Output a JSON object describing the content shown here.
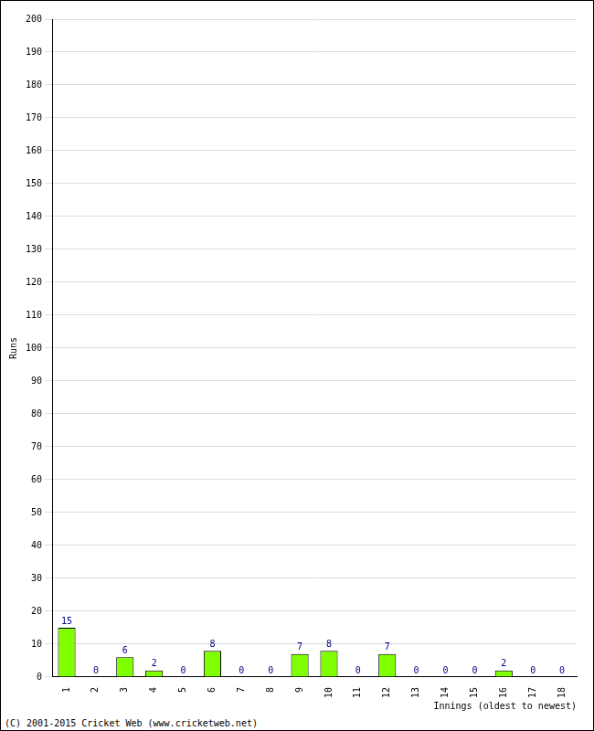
{
  "chart_data": {
    "type": "bar",
    "categories": [
      "1",
      "2",
      "3",
      "4",
      "5",
      "6",
      "7",
      "8",
      "9",
      "10",
      "11",
      "12",
      "13",
      "14",
      "15",
      "16",
      "17",
      "18"
    ],
    "values": [
      15,
      0,
      6,
      2,
      0,
      8,
      0,
      0,
      7,
      8,
      0,
      7,
      0,
      0,
      0,
      2,
      0,
      0
    ],
    "color": "#80ff00",
    "x_label": "Innings (oldest to newest)",
    "y_label": "Runs",
    "annotation": "(C) 2001-2015 Cricket Web (www.cricketweb.net)",
    "ylim": [
      0,
      200
    ],
    "yticks": [
      0,
      10,
      20,
      30,
      40,
      50,
      60,
      70,
      80,
      90,
      100,
      110,
      120,
      130,
      140,
      150,
      160,
      170,
      180,
      190,
      200
    ],
    "grid": true,
    "data_labels": true
  }
}
